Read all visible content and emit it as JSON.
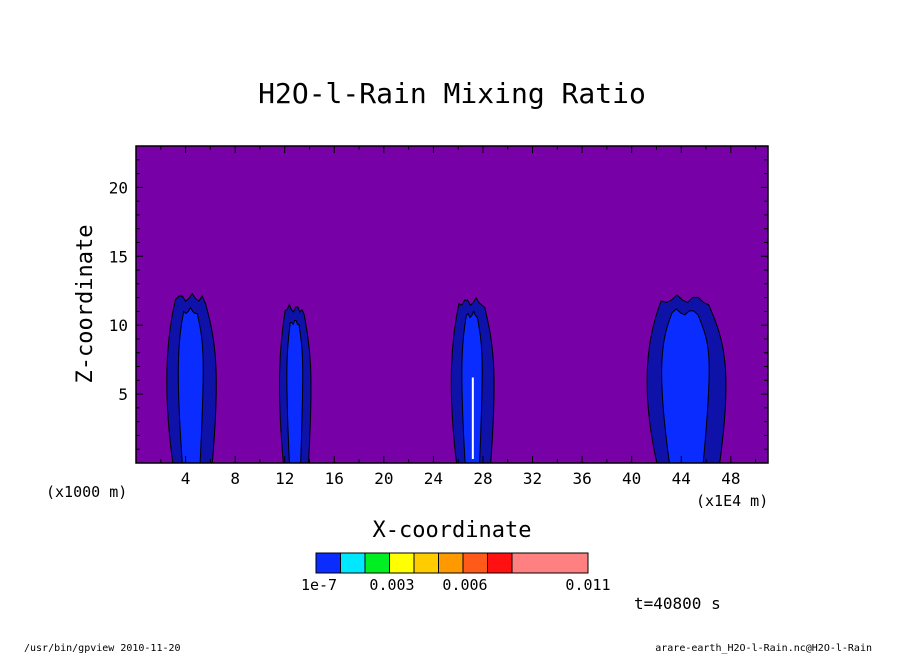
{
  "footer": {
    "left": "/usr/bin/gpview  2010-11-20",
    "right": "arare-earth_H2O-l-Rain.nc@H2O-l-Rain"
  },
  "time_label": "t=40800 s",
  "colorbar": {
    "colors": [
      "#0b2cff",
      "#00e8ff",
      "#00ee22",
      "#ffff00",
      "#ffcc00",
      "#ff9900",
      "#ff5a1a",
      "#ff1111",
      "#ff8080"
    ],
    "tick_labels": [
      "1e-7",
      "0.003",
      "0.006",
      "0.011"
    ]
  },
  "chart_data": {
    "type": "contour",
    "title": "H2O-l-Rain Mixing Ratio",
    "xlabel": "X-coordinate",
    "ylabel": "Z-coordinate",
    "x_unit_left": "(x1000 m)",
    "x_unit_right": "(x1E4 m)",
    "xlim": [
      0,
      51
    ],
    "ylim": [
      0,
      23
    ],
    "x_ticks": [
      4,
      8,
      12,
      16,
      20,
      24,
      28,
      32,
      36,
      40,
      44,
      48
    ],
    "y_ticks": [
      5,
      10,
      15,
      20
    ],
    "background_color": "#7700a6",
    "level_colors": [
      "#0f12a8",
      "#0b2cff"
    ],
    "columns": [
      {
        "x_center": 4.4,
        "top": 12.3
      },
      {
        "x_center": 12.8,
        "top": 11.5
      },
      {
        "x_center": 27.1,
        "top": 12.0
      },
      {
        "x_center": 44.3,
        "top": 12.2
      }
    ]
  }
}
